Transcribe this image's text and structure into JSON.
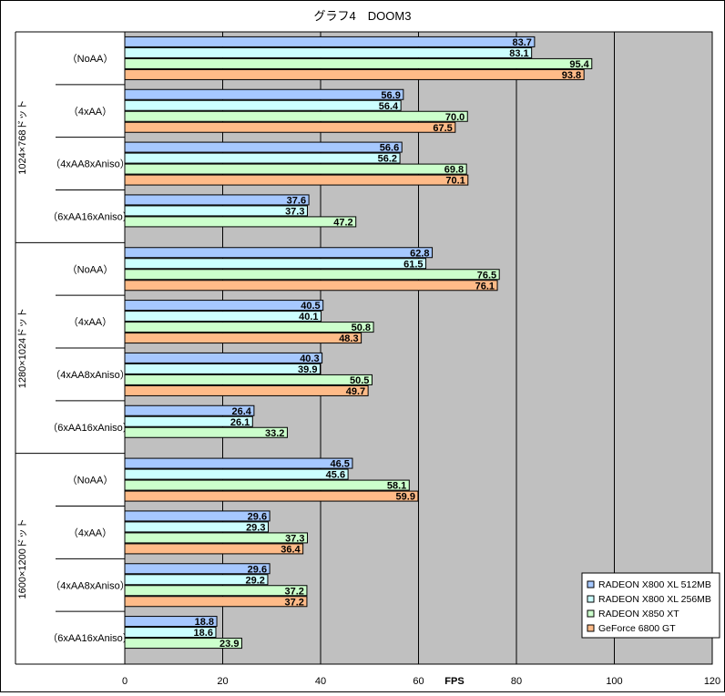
{
  "chart_data": {
    "type": "bar",
    "orientation": "horizontal",
    "title": "グラフ4　DOOM3",
    "xlabel": "FPS",
    "xlim": [
      0,
      120
    ],
    "xticks": [
      0,
      20,
      40,
      60,
      80,
      100,
      120
    ],
    "grid": true,
    "legend_position": "bottom-right",
    "groups": [
      {
        "label": "1024×768ドット",
        "categories": [
          "（NoAA）",
          "（4xAA）",
          "（4xAA8xAniso）",
          "（6xAA16xAniso）"
        ]
      },
      {
        "label": "1280×1024ドット",
        "categories": [
          "（NoAA）",
          "（4xAA）",
          "（4xAA8xAniso）",
          "（6xAA16xAniso）"
        ]
      },
      {
        "label": "1600×1200ドット",
        "categories": [
          "（NoAA）",
          "（4xAA）",
          "（4xAA8xAniso）",
          "（6xAA16xAniso）"
        ]
      }
    ],
    "series": [
      {
        "name": "RADEON X800 XL 512MB",
        "color": "#a6c8ff",
        "values": [
          83.7,
          56.9,
          56.6,
          37.6,
          62.8,
          40.5,
          40.3,
          26.4,
          46.5,
          29.6,
          29.6,
          18.8
        ]
      },
      {
        "name": "RADEON X800 XL 256MB",
        "color": "#ccffff",
        "values": [
          83.1,
          56.4,
          56.2,
          37.3,
          61.5,
          40.1,
          39.9,
          26.1,
          45.6,
          29.3,
          29.2,
          18.6
        ]
      },
      {
        "name": "RADEON X850 XT",
        "color": "#ccffcc",
        "values": [
          95.4,
          70.0,
          69.8,
          47.2,
          76.5,
          50.8,
          50.5,
          33.2,
          58.1,
          37.3,
          37.2,
          23.9
        ]
      },
      {
        "name": "GeForce 6800 GT",
        "color": "#ffbb88",
        "values": [
          93.8,
          67.5,
          70.1,
          null,
          76.1,
          48.3,
          49.7,
          null,
          59.9,
          36.4,
          37.2,
          null
        ]
      }
    ]
  }
}
